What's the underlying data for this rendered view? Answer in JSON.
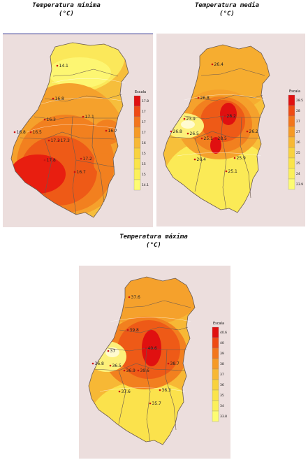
{
  "maps": [
    {
      "title": "Temperatura mínima",
      "unit": "(°C)",
      "scale_title": "Escala",
      "scale": [
        {
          "label": "17.8",
          "color": "#e01010"
        },
        {
          "label": "17",
          "color": "#ee4a14"
        },
        {
          "label": "17",
          "color": "#f2751c"
        },
        {
          "label": "17",
          "color": "#f59a26"
        },
        {
          "label": "16",
          "color": "#f7b835"
        },
        {
          "label": "15",
          "color": "#f8d23e"
        },
        {
          "label": "15",
          "color": "#fae44a"
        },
        {
          "label": "15",
          "color": "#fbf05a"
        },
        {
          "label": "14.1",
          "color": "#fdfc72"
        }
      ],
      "stations": [
        {
          "name": "14.1"
        },
        {
          "name": "16.8"
        },
        {
          "name": "16.3"
        },
        {
          "name": "17.1"
        },
        {
          "name": "16.7"
        },
        {
          "name": "16.8"
        },
        {
          "name": "16.5"
        },
        {
          "name": "17.3"
        },
        {
          "name": "17.3"
        },
        {
          "name": "17.8"
        },
        {
          "name": "17.2"
        },
        {
          "name": "16.7"
        }
      ]
    },
    {
      "title": "Temperatura media",
      "unit": "(°C)",
      "scale_title": "Escala",
      "scale": [
        {
          "label": "28.5",
          "color": "#e01010"
        },
        {
          "label": "28",
          "color": "#ee4a14"
        },
        {
          "label": "27",
          "color": "#f2751c"
        },
        {
          "label": "27",
          "color": "#f59a26"
        },
        {
          "label": "26",
          "color": "#f7b835"
        },
        {
          "label": "25",
          "color": "#f8d23e"
        },
        {
          "label": "25",
          "color": "#fae44a"
        },
        {
          "label": "24",
          "color": "#fbf05a"
        },
        {
          "label": "23.9",
          "color": "#fdfc72"
        }
      ],
      "stations": [
        {
          "name": "26.4"
        },
        {
          "name": "26.8"
        },
        {
          "name": "28.2"
        },
        {
          "name": "23.9"
        },
        {
          "name": "26.8"
        },
        {
          "name": "26.5"
        },
        {
          "name": "25.1"
        },
        {
          "name": "28.5"
        },
        {
          "name": "26.2"
        },
        {
          "name": "26.4"
        },
        {
          "name": "25.9"
        },
        {
          "name": "25.1"
        }
      ]
    },
    {
      "title": "Temperatura máxima",
      "unit": "(°C)",
      "scale_title": "Escala",
      "scale": [
        {
          "label": "40.6",
          "color": "#e01010"
        },
        {
          "label": "40",
          "color": "#ee4a14"
        },
        {
          "label": "39",
          "color": "#f2751c"
        },
        {
          "label": "38",
          "color": "#f59a26"
        },
        {
          "label": "37",
          "color": "#f7b835"
        },
        {
          "label": "36",
          "color": "#f8d23e"
        },
        {
          "label": "35",
          "color": "#fae44a"
        },
        {
          "label": "34",
          "color": "#fbf05a"
        },
        {
          "label": "33.8",
          "color": "#fdfc72"
        }
      ],
      "stations": [
        {
          "name": "37.6"
        },
        {
          "name": "39.8"
        },
        {
          "name": "40.6"
        },
        {
          "name": "37"
        },
        {
          "name": "36.8"
        },
        {
          "name": "36.5"
        },
        {
          "name": "36.9"
        },
        {
          "name": "39.6"
        },
        {
          "name": "38.7"
        },
        {
          "name": "37.6"
        },
        {
          "name": "36.3"
        },
        {
          "name": "35.7"
        }
      ]
    }
  ]
}
